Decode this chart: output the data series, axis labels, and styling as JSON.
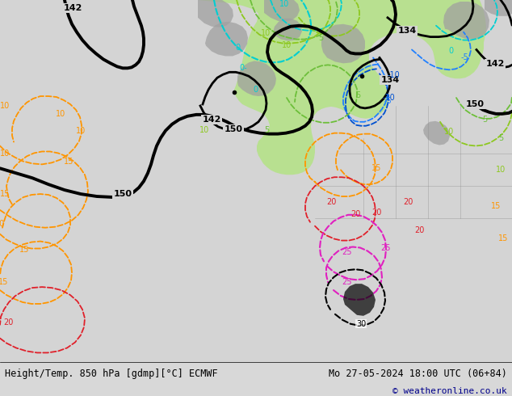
{
  "title_left": "Height/Temp. 850 hPa [gdmp][°C] ECMWF",
  "title_right": "Mo 27-05-2024 18:00 UTC (06+84)",
  "copyright": "© weatheronline.co.uk",
  "figsize": [
    6.34,
    4.9
  ],
  "dpi": 100,
  "bg_color_light": "#d8d8d8",
  "bottom_bar_color": "#ffffff",
  "copyright_color": "#00008b",
  "green_land": "#b8e090",
  "gray_land": "#aaaaaa",
  "white_ocean": "#d4d4d4"
}
